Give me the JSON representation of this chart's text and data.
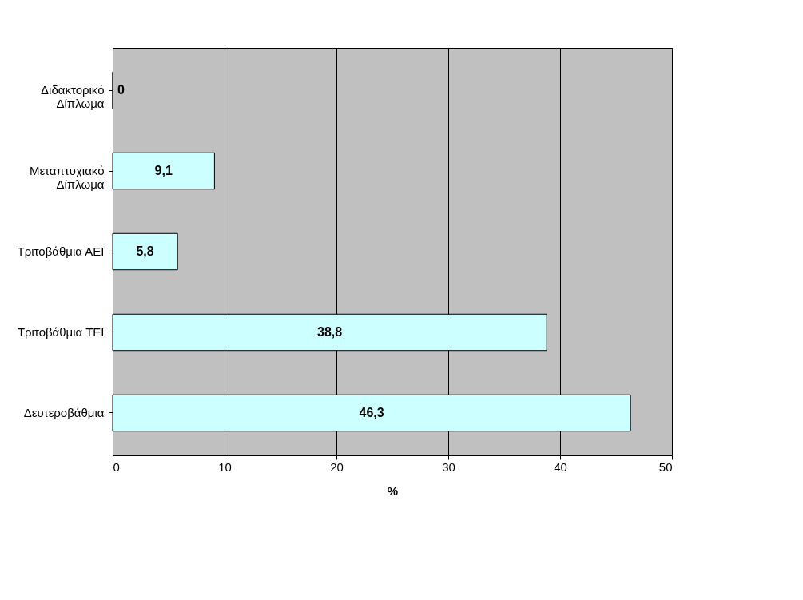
{
  "chart_data": {
    "type": "bar",
    "orientation": "horizontal",
    "xlabel": "%",
    "categories": [
      "Διδακτορικό\nΔίπλωμα",
      "Μεταπτυχιακό\nΔίπλωμα",
      "Τριτοβάθμια ΑΕΙ",
      "Τριτοβάθμια ΤΕΙ",
      "Δευτεροβάθμια"
    ],
    "values": [
      0,
      9.1,
      5.8,
      38.8,
      46.3
    ],
    "value_labels": [
      "0",
      "9,1",
      "5,8",
      "38,8",
      "46,3"
    ],
    "color": "#ccffff",
    "xlim": [
      0,
      50
    ],
    "xticks": [
      0,
      10,
      20,
      30,
      40,
      50
    ],
    "grid": "x"
  }
}
